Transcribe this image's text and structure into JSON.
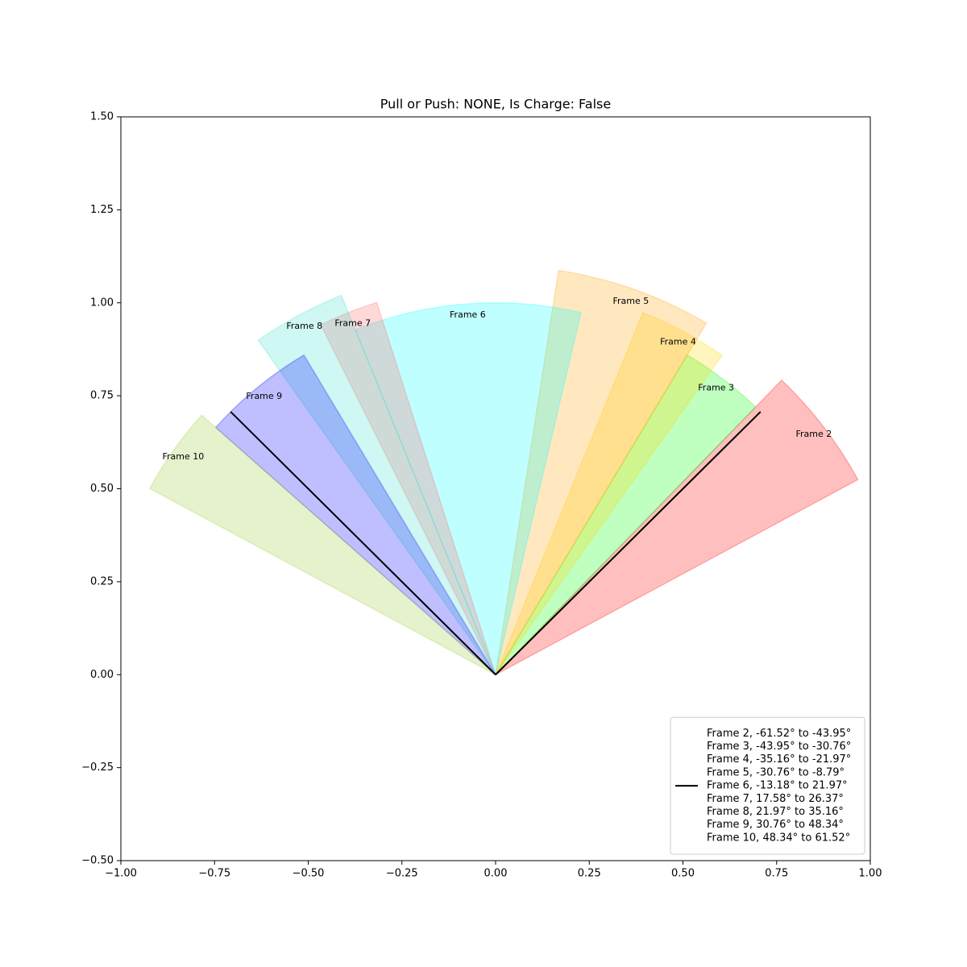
{
  "chart_data": {
    "type": "wedge",
    "title": "Pull or Push: NONE, Is Charge: False",
    "xlim": [
      -1,
      1
    ],
    "ylim": [
      -0.5,
      1.5
    ],
    "xticks": [
      {
        "value": -1,
        "label": "−1.00"
      },
      {
        "value": -0.75,
        "label": "−0.75"
      },
      {
        "value": -0.5,
        "label": "−0.50"
      },
      {
        "value": -0.25,
        "label": "−0.25"
      },
      {
        "value": 0,
        "label": "0.00"
      },
      {
        "value": 0.25,
        "label": "0.25"
      },
      {
        "value": 0.5,
        "label": "0.50"
      },
      {
        "value": 0.75,
        "label": "0.75"
      },
      {
        "value": 1,
        "label": "1.00"
      }
    ],
    "yticks": [
      {
        "value": -0.5,
        "label": "−0.50"
      },
      {
        "value": -0.25,
        "label": "−0.25"
      },
      {
        "value": 0,
        "label": "0.00"
      },
      {
        "value": 0.25,
        "label": "0.25"
      },
      {
        "value": 0.5,
        "label": "0.50"
      },
      {
        "value": 0.75,
        "label": "0.75"
      },
      {
        "value": 1,
        "label": "1.00"
      },
      {
        "value": 1.25,
        "label": "1.25"
      },
      {
        "value": 1.5,
        "label": "1.50"
      }
    ],
    "wedges": [
      {
        "name": "Frame 2",
        "start": -61.52,
        "end": -43.95,
        "radius": 1.1,
        "color": "#ff0000"
      },
      {
        "name": "Frame 3",
        "start": -43.95,
        "end": -30.76,
        "radius": 1.0,
        "color": "#00ff00"
      },
      {
        "name": "Frame 4",
        "start": -35.16,
        "end": -21.97,
        "radius": 1.05,
        "color": "#ffd700"
      },
      {
        "name": "Frame 5",
        "start": -30.76,
        "end": -8.79,
        "radius": 1.1,
        "color": "#ffa500"
      },
      {
        "name": "Frame 6",
        "start": -13.18,
        "end": 21.97,
        "radius": 1.0,
        "color": "#00ffff"
      },
      {
        "name": "Frame 7",
        "start": 17.58,
        "end": 26.37,
        "radius": 1.05,
        "color": "#ff6666"
      },
      {
        "name": "Frame 8",
        "start": 21.97,
        "end": 35.16,
        "radius": 1.1,
        "color": "#40e0d0"
      },
      {
        "name": "Frame 9",
        "start": 30.76,
        "end": 48.34,
        "radius": 1.0,
        "color": "#0000ff"
      },
      {
        "name": "Frame 10",
        "start": 48.34,
        "end": 61.52,
        "radius": 1.05,
        "color": "#9acd32"
      }
    ],
    "lines": {
      "color": "#000000",
      "angles": [
        -45,
        45
      ],
      "length": 1,
      "legend": [
        "Frame 2, -61.52° to -43.95°",
        "Frame 3, -43.95° to -30.76°",
        "Frame 4, -35.16° to -21.97°",
        "Frame 5, -30.76° to -8.79°",
        "Frame 6, -13.18° to 21.97°",
        "Frame 7, 17.58° to 26.37°",
        "Frame 8, 21.97° to 35.16°",
        "Frame 9, 30.76° to 48.34°",
        "Frame 10, 48.34° to 61.52°"
      ]
    },
    "legend_loc": "lower right"
  }
}
